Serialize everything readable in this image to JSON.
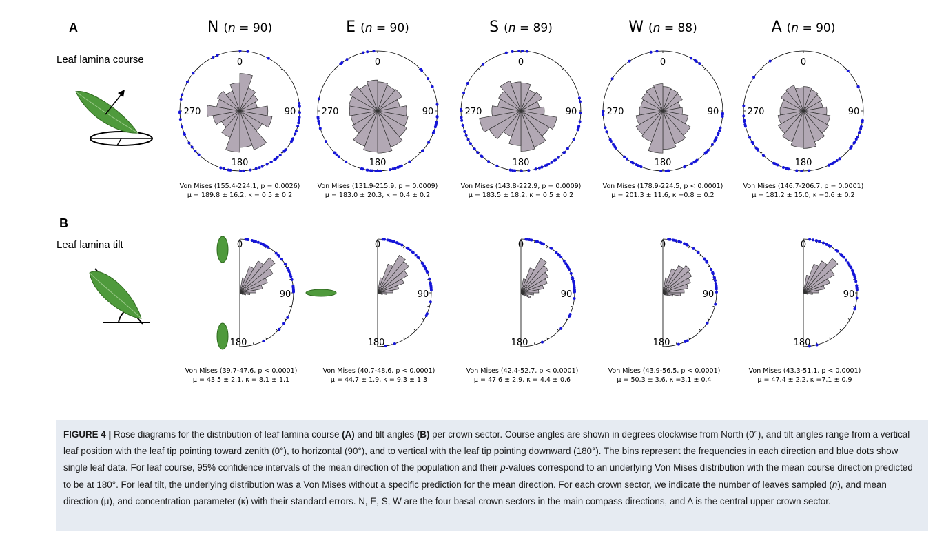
{
  "panels": {
    "A": {
      "letter": "A",
      "label": "Leaf lamina course"
    },
    "B": {
      "letter": "B",
      "label": "Leaf lamina tilt"
    }
  },
  "sectors": [
    {
      "letter": "N",
      "n_label": "n",
      "n_value": "= 90)"
    },
    {
      "letter": "E",
      "n_label": "n",
      "n_value": "= 90)"
    },
    {
      "letter": "S",
      "n_label": "n",
      "n_value": "= 89)"
    },
    {
      "letter": "W",
      "n_label": "n",
      "n_value": "= 88)"
    },
    {
      "letter": "A",
      "n_label": "n",
      "n_value": "= 90)"
    }
  ],
  "course_axis_labels": [
    "0",
    "90",
    "180",
    "270"
  ],
  "tilt_axis_labels": [
    "0",
    "90",
    "180"
  ],
  "colors": {
    "bar_fill": "#b2a8b4",
    "dots": "#1515d8",
    "caption_bg": "#e6ebf2",
    "leaf": "#4f9a3c"
  },
  "chart_data": [
    {
      "type": "rose",
      "sector": "N",
      "panel": "course",
      "bins_deg_width": 20,
      "values": [
        0.8,
        0.52,
        0.45,
        0.38,
        0.6,
        0.7,
        0.55,
        0.88,
        0.78,
        0.88,
        0.6,
        0.45,
        0.58,
        0.7,
        0.5,
        0.55,
        0.45,
        0.6
      ],
      "stats_line1": "Von Mises (155.4-224.1, p = 0.0026)",
      "stats_line2": "μ = 189.8 ± 16.2, κ = 0.5 ± 0.2"
    },
    {
      "type": "rose",
      "sector": "E",
      "panel": "course",
      "bins_deg_width": 20,
      "values": [
        0.62,
        0.58,
        0.6,
        0.48,
        0.62,
        0.66,
        0.72,
        0.82,
        0.9,
        0.88,
        0.8,
        0.62,
        0.58,
        0.6,
        0.62,
        0.68,
        0.6,
        0.66
      ],
      "stats_line1": "Von Mises (131.9-215.9, p = 0.0009)",
      "stats_line2": "μ = 183.0 ± 20.3, κ = 0.4 ± 0.2"
    },
    {
      "type": "rose",
      "sector": "S",
      "panel": "course",
      "bins_deg_width": 20,
      "values": [
        0.6,
        0.48,
        0.52,
        0.4,
        0.5,
        0.78,
        0.7,
        0.82,
        0.86,
        0.74,
        0.58,
        0.78,
        0.9,
        0.62,
        0.5,
        0.55,
        0.68,
        0.62
      ],
      "stats_line1": "Von Mises (143.8-222.9, p = 0.0009)",
      "stats_line2": "μ = 183.5 ± 18.2, κ = 0.5 ± 0.2"
    },
    {
      "type": "rose",
      "sector": "W",
      "panel": "course",
      "bins_deg_width": 20,
      "values": [
        0.52,
        0.5,
        0.48,
        0.38,
        0.42,
        0.55,
        0.68,
        0.75,
        0.82,
        0.9,
        0.7,
        0.66,
        0.58,
        0.5,
        0.48,
        0.52,
        0.55,
        0.58
      ],
      "stats_line1": "Von Mises (178.9-224.5, p < 0.0001)",
      "stats_line2": "μ = 201.3 ± 11.6, κ =0.8 ± 0.2"
    },
    {
      "type": "rose",
      "sector": "A",
      "panel": "course",
      "bins_deg_width": 20,
      "values": [
        0.52,
        0.48,
        0.45,
        0.42,
        0.5,
        0.58,
        0.62,
        0.7,
        0.8,
        0.78,
        0.7,
        0.62,
        0.55,
        0.5,
        0.48,
        0.55,
        0.58,
        0.5
      ],
      "stats_line1": "Von Mises (146.7-206.7, p = 0.0001)",
      "stats_line2": "μ = 181.2 ± 15.0, κ =0.6 ± 0.2"
    },
    {
      "type": "rose",
      "sector": "N",
      "panel": "tilt",
      "bins_deg_width": 10,
      "values": [
        0.1,
        0.3,
        0.55,
        0.72,
        0.9,
        0.75,
        0.58,
        0.45,
        0.32,
        0.2,
        0.12,
        0.06,
        0.03,
        0.02,
        0.0,
        0.0,
        0.0,
        0.0
      ],
      "stats_line1": "Von Mises (39.7-47.6, p < 0.0001)",
      "stats_line2": "μ = 43.5 ± 2.1, κ = 8.1 ± 1.1"
    },
    {
      "type": "rose",
      "sector": "E",
      "panel": "tilt",
      "bins_deg_width": 10,
      "values": [
        0.08,
        0.3,
        0.6,
        0.85,
        0.8,
        0.68,
        0.55,
        0.42,
        0.3,
        0.18,
        0.1,
        0.05,
        0.03,
        0.0,
        0.0,
        0.0,
        0.0,
        0.0
      ],
      "stats_line1": "Von Mises (40.7-48.6, p < 0.0001)",
      "stats_line2": "μ = 44.7 ± 1.9, κ = 9.3 ± 1.3"
    },
    {
      "type": "rose",
      "sector": "S",
      "panel": "tilt",
      "bins_deg_width": 10,
      "values": [
        0.08,
        0.28,
        0.52,
        0.78,
        0.7,
        0.62,
        0.55,
        0.45,
        0.35,
        0.25,
        0.15,
        0.2,
        0.1,
        0.05,
        0.0,
        0.0,
        0.0,
        0.0
      ],
      "stats_line1": "Von Mises (42.4-52.7, p < 0.0001)",
      "stats_line2": "μ = 47.6 ± 2.9, κ = 4.4 ± 0.6"
    },
    {
      "type": "rose",
      "sector": "W",
      "panel": "tilt",
      "bins_deg_width": 10,
      "values": [
        0.1,
        0.3,
        0.5,
        0.62,
        0.7,
        0.65,
        0.58,
        0.5,
        0.42,
        0.35,
        0.2,
        0.12,
        0.08,
        0.05,
        0.0,
        0.0,
        0.0,
        0.0
      ],
      "stats_line1": "Von Mises (43.9-56.5, p < 0.0001)",
      "stats_line2": "μ = 50.3 ± 3.6, κ =3.1 ± 0.4"
    },
    {
      "type": "rose",
      "sector": "A",
      "panel": "tilt",
      "bins_deg_width": 10,
      "values": [
        0.1,
        0.35,
        0.6,
        0.72,
        0.88,
        0.7,
        0.55,
        0.42,
        0.3,
        0.18,
        0.08,
        0.04,
        0.0,
        0.0,
        0.0,
        0.0,
        0.0,
        0.0
      ],
      "stats_line1": "Von Mises (43.3-51.1, p < 0.0001)",
      "stats_line2": "μ = 47.4 ± 2.2, κ =7.1 ± 0.9"
    }
  ],
  "caption": {
    "figure_label": "FIGURE 4 |",
    "s1": " Rose diagrams for the distribution of leaf lamina course ",
    "s1_bold": "(A)",
    "s2": " and tilt angles ",
    "s2_bold": "(B)",
    "s3": " per crown sector. Course angles are shown in degrees clockwise from North (0°), and tilt angles range from a vertical leaf position with the leaf tip pointing toward zenith (0°), to horizontal (90°), and to vertical with the leaf tip pointing downward (180°). The bins represent the frequencies in each direction and blue dots show single leaf data. For leaf course, 95% confidence intervals of the mean direction of the population and their ",
    "s3_italic": "p",
    "s4": "-values correspond to an underlying Von Mises distribution with the mean course direction predicted to be at 180°. For leaf tilt, the underlying distribution was a Von Mises without a specific prediction for the mean direction. For each crown sector, we indicate the number of leaves sampled (",
    "s4_italic": "n",
    "s5": "), and mean direction (μ), and concentration parameter (κ) with their standard errors. N, E, S, W are the four basal crown sectors in the main compass directions, and A is the central upper crown sector."
  }
}
